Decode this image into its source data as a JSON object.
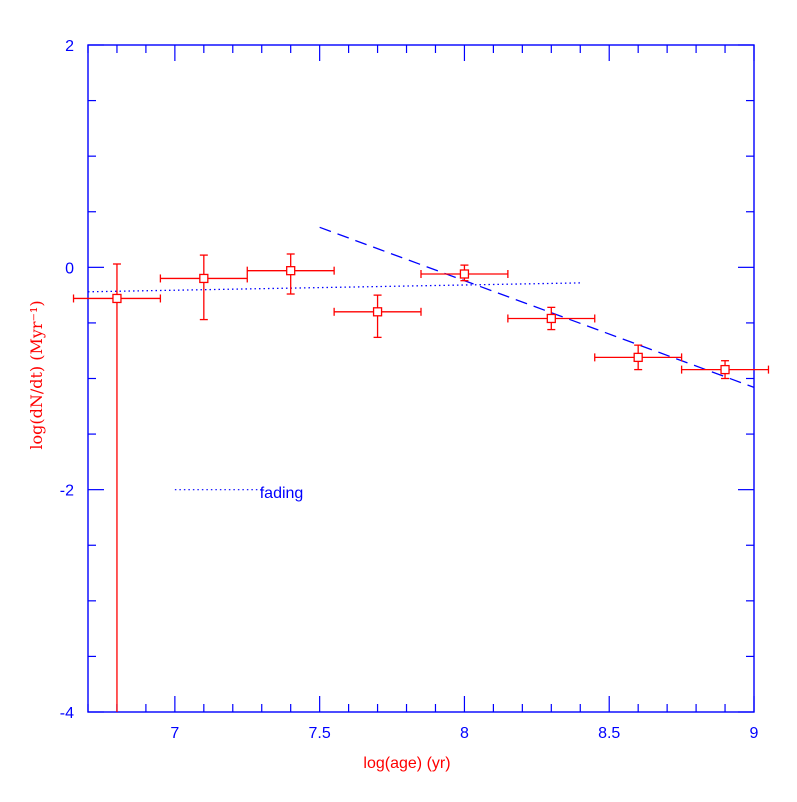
{
  "chart_data": {
    "type": "scatter",
    "xlabel": "log(age) (yr)",
    "ylabel": "log(dN/dt) (Myr⁻¹)",
    "xlim": [
      6.7,
      9.0
    ],
    "ylim": [
      -4,
      2
    ],
    "x_ticks": [
      7,
      7.5,
      8,
      8.5,
      9
    ],
    "x_tick_labels": [
      "7",
      "7.5",
      "8",
      "8.5",
      "9"
    ],
    "y_ticks": [
      -4,
      -2,
      0,
      2
    ],
    "y_tick_labels": [
      "-4",
      "-2",
      "0",
      "2"
    ],
    "grid": false,
    "colors": {
      "axes": "#0000ff",
      "data": "#ff0000",
      "model": "#0000ff"
    },
    "series": [
      {
        "marker": "open-square",
        "points": [
          {
            "x": 6.8,
            "y": -0.28,
            "xerr": [
              0.15,
              0.15
            ],
            "yerr": [
              4.0,
              0.31
            ]
          },
          {
            "x": 7.1,
            "y": -0.1,
            "xerr": [
              0.15,
              0.15
            ],
            "yerr": [
              0.37,
              0.21
            ]
          },
          {
            "x": 7.4,
            "y": -0.03,
            "xerr": [
              0.15,
              0.15
            ],
            "yerr": [
              0.21,
              0.15
            ]
          },
          {
            "x": 7.7,
            "y": -0.4,
            "xerr": [
              0.15,
              0.15
            ],
            "yerr": [
              0.23,
              0.15
            ]
          },
          {
            "x": 8.0,
            "y": -0.06,
            "xerr": [
              0.15,
              0.15
            ],
            "yerr": [
              0.06,
              0.08
            ]
          },
          {
            "x": 8.3,
            "y": -0.46,
            "xerr": [
              0.15,
              0.15
            ],
            "yerr": [
              0.1,
              0.1
            ]
          },
          {
            "x": 8.6,
            "y": -0.81,
            "xerr": [
              0.15,
              0.15
            ],
            "yerr": [
              0.11,
              0.11
            ]
          },
          {
            "x": 8.9,
            "y": -0.92,
            "xerr": [
              0.15,
              0.15
            ],
            "yerr": [
              0.08,
              0.08
            ]
          }
        ]
      }
    ],
    "model_lines": [
      {
        "style": "dotted",
        "x": [
          6.7,
          8.4
        ],
        "y": [
          -0.22,
          -0.14
        ]
      },
      {
        "style": "dashed",
        "x": [
          7.5,
          9.0
        ],
        "y": [
          0.36,
          -1.08
        ]
      }
    ],
    "legend": {
      "label": "fading",
      "style": "dotted",
      "x": [
        7.0,
        7.3
      ],
      "y": -2.0
    }
  }
}
